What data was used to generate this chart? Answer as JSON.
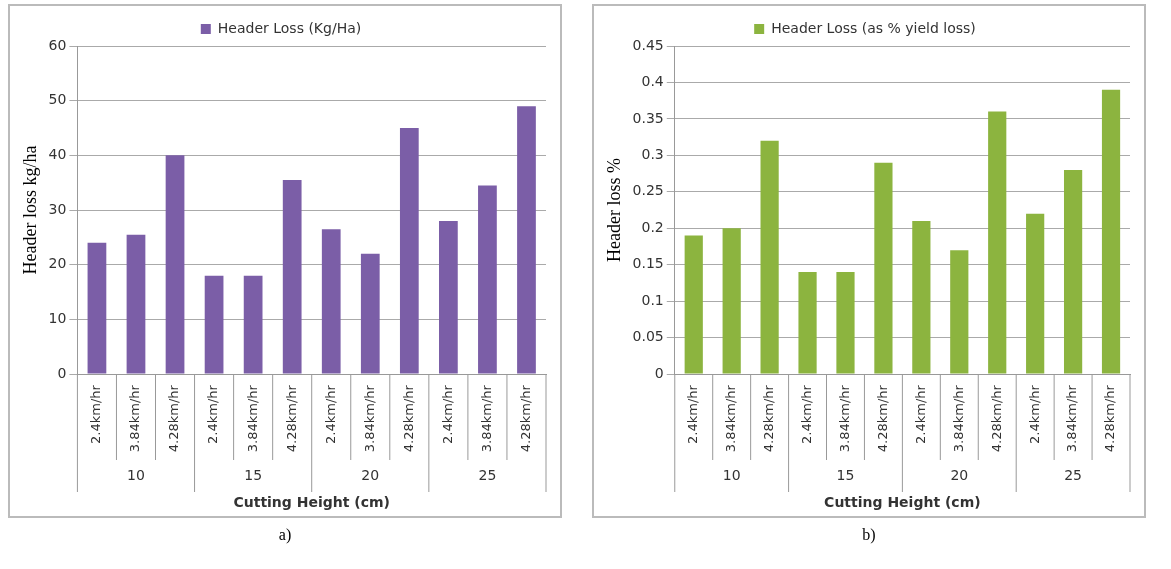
{
  "chart_data": [
    {
      "type": "bar",
      "categories": [
        "2.4km/hr",
        "3.84km/hr",
        "4.28km/hr",
        "2.4km/hr",
        "3.84km/hr",
        "4.28km/hr",
        "2.4km/hr",
        "3.84km/hr",
        "4.28km/hr",
        "2.4km/hr",
        "3.84km/hr",
        "4.28km/hr"
      ],
      "series": [
        {
          "name": "Header Loss (Kg/Ha)",
          "color": "#7b5ea7",
          "values": [
            24,
            25.5,
            40,
            18,
            18,
            35.5,
            26.5,
            22,
            45,
            28,
            34.5,
            49
          ]
        }
      ],
      "ylabel": "Header loss kg/ha",
      "xlabel": "Cutting Height (cm)",
      "ylim": [
        0,
        60
      ],
      "yticks": [
        0,
        10,
        20,
        30,
        40,
        50,
        60
      ],
      "grid": "y",
      "legend": "top",
      "annotations": [
        "10",
        "15",
        "20",
        "25",
        "a)"
      ]
    },
    {
      "type": "bar",
      "categories": [
        "2.4km/hr",
        "3.84km/hr",
        "4.28km/hr",
        "2.4km/hr",
        "3.84km/hr",
        "4.28km/hr",
        "2.4km/hr",
        "3.84km/hr",
        "4.28km/hr",
        "2.4km/hr",
        "3.84km/hr",
        "4.28km/hr"
      ],
      "series": [
        {
          "name": "Header Loss (as % yield loss)",
          "color": "#8cb43f",
          "values": [
            0.19,
            0.2,
            0.32,
            0.14,
            0.14,
            0.29,
            0.21,
            0.17,
            0.36,
            0.22,
            0.28,
            0.39
          ]
        }
      ],
      "ylabel": "Header loss %",
      "xlabel": "Cutting Height (cm)",
      "ylim": [
        0,
        0.45
      ],
      "yticks": [
        0,
        0.05,
        0.1,
        0.15,
        0.2,
        0.25,
        0.3,
        0.35,
        0.4,
        0.45
      ],
      "grid": "y",
      "legend": "top",
      "annotations": [
        "10",
        "15",
        "20",
        "25",
        "b)"
      ]
    }
  ]
}
